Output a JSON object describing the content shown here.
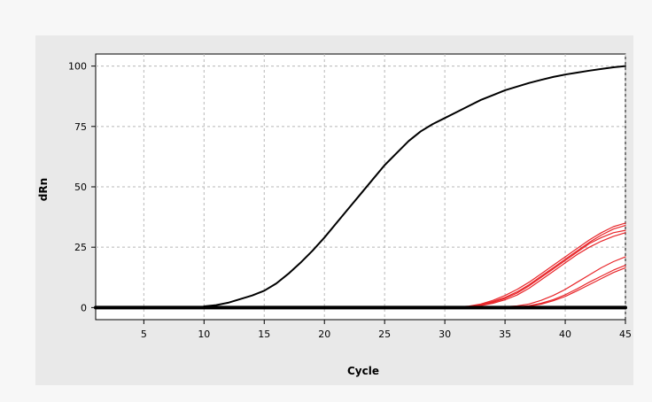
{
  "chart_data": {
    "type": "line",
    "title": "",
    "xlabel": "Cycle",
    "ylabel": "dRn",
    "xlim": [
      1,
      45
    ],
    "ylim": [
      -5,
      105
    ],
    "xticks": [
      5,
      10,
      15,
      20,
      25,
      30,
      35,
      40,
      45
    ],
    "yticks": [
      0,
      25,
      50,
      75,
      100
    ],
    "grid": true,
    "colors": {
      "reference": "#000000",
      "samples": "#e8262a",
      "baseline": "#000000"
    },
    "series": [
      {
        "color": "#000000",
        "x": [
          10,
          11,
          12,
          13,
          14,
          15,
          16,
          17,
          18,
          19,
          20,
          21,
          22,
          23,
          24,
          25,
          26,
          27,
          28,
          29,
          30,
          31,
          32,
          33,
          34,
          35,
          36,
          37,
          38,
          39,
          40,
          41,
          42,
          43,
          44,
          45
        ],
        "y": [
          0.5,
          1,
          2,
          3.5,
          5,
          7,
          10,
          14,
          18.5,
          23.5,
          29,
          35,
          41,
          47,
          53,
          59,
          64,
          69,
          73,
          76,
          78.5,
          81,
          83.5,
          86,
          88,
          90,
          91.5,
          93,
          94.3,
          95.5,
          96.5,
          97.3,
          98.1,
          98.8,
          99.5,
          100
        ]
      },
      {
        "color": "#e8262a",
        "x": [
          30,
          31,
          32,
          33,
          34,
          35,
          36,
          37,
          38,
          39,
          40,
          41,
          42,
          43,
          44,
          45
        ],
        "y": [
          0,
          0.2,
          0.6,
          1.5,
          3,
          5,
          7.5,
          10.5,
          14,
          17.5,
          21,
          24.5,
          28,
          31,
          33.5,
          35
        ]
      },
      {
        "color": "#e8262a",
        "x": [
          30,
          31,
          32,
          33,
          34,
          35,
          36,
          37,
          38,
          39,
          40,
          41,
          42,
          43,
          44,
          45
        ],
        "y": [
          0,
          0.2,
          0.5,
          1.2,
          2.5,
          4.2,
          6.5,
          9.5,
          13,
          16.5,
          20,
          23.5,
          27,
          30,
          32.5,
          34
        ]
      },
      {
        "color": "#e8262a",
        "x": [
          30,
          31,
          32,
          33,
          34,
          35,
          36,
          37,
          38,
          39,
          40,
          41,
          42,
          43,
          44,
          45
        ],
        "y": [
          0,
          0.1,
          0.3,
          0.8,
          1.8,
          3.2,
          5.2,
          8,
          11.5,
          15,
          18.5,
          22,
          25,
          27.5,
          29.5,
          31
        ]
      },
      {
        "color": "#e8262a",
        "x": [
          30,
          31,
          32,
          33,
          34,
          35,
          36,
          37,
          38,
          39,
          40,
          41,
          42,
          43,
          44,
          45
        ],
        "y": [
          0,
          0.1,
          0.4,
          1,
          2.2,
          3.8,
          6,
          9,
          12.5,
          16,
          19.5,
          23,
          26.5,
          29,
          31,
          32
        ]
      },
      {
        "color": "#e8262a",
        "x": [
          33,
          34,
          35,
          36,
          37,
          38,
          39,
          40,
          41,
          42,
          43,
          44,
          45
        ],
        "y": [
          0,
          0.1,
          0.3,
          0.7,
          1.5,
          3,
          5,
          7.5,
          10.5,
          13.5,
          16.5,
          19,
          21
        ]
      },
      {
        "color": "#e8262a",
        "x": [
          34,
          35,
          36,
          37,
          38,
          39,
          40,
          41,
          42,
          43,
          44,
          45
        ],
        "y": [
          0,
          0.1,
          0.3,
          0.8,
          1.8,
          3.3,
          5.3,
          7.8,
          10.5,
          13,
          15.5,
          17.5
        ]
      },
      {
        "color": "#e8262a",
        "x": [
          35,
          36,
          37,
          38,
          39,
          40,
          41,
          42,
          43,
          44,
          45
        ],
        "y": [
          0,
          0.2,
          0.6,
          1.4,
          2.8,
          4.6,
          7,
          9.5,
          12,
          14.5,
          16.5
        ]
      },
      {
        "color": "#000000",
        "x": [
          1,
          45
        ],
        "y": [
          0,
          0
        ]
      }
    ]
  }
}
